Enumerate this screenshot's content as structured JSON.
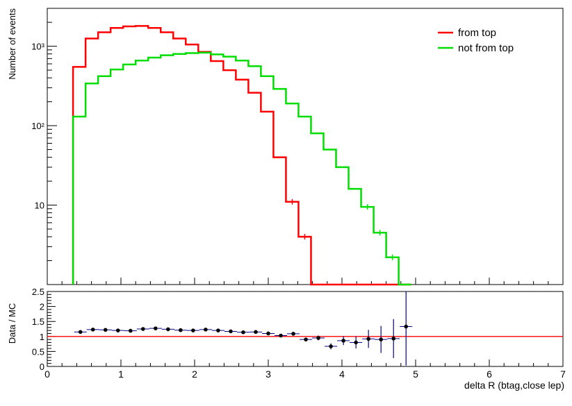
{
  "chart_data": [
    {
      "type": "line",
      "style": "step-histogram",
      "title": "",
      "xlabel": "",
      "ylabel": "Number of events",
      "yscale": "log",
      "ylim": [
        1,
        3000
      ],
      "xlim": [
        0,
        7
      ],
      "bin_edges": [
        0.35,
        0.52,
        0.69,
        0.86,
        1.03,
        1.2,
        1.37,
        1.54,
        1.71,
        1.88,
        2.05,
        2.22,
        2.39,
        2.56,
        2.73,
        2.9,
        3.07,
        3.24,
        3.41,
        3.58,
        3.75,
        3.92,
        4.09,
        4.26,
        4.43,
        4.6,
        4.77,
        4.94
      ],
      "y_tick_labels": [
        "10",
        "10²",
        "10³"
      ],
      "y_tick_values": [
        10,
        100,
        1000
      ],
      "legend_position": "top-right",
      "series": [
        {
          "name": "from top",
          "color": "#ff0000",
          "values": [
            550,
            1250,
            1500,
            1700,
            1780,
            1800,
            1700,
            1500,
            1250,
            1050,
            850,
            650,
            500,
            380,
            260,
            150,
            40,
            11,
            4,
            0,
            0,
            0,
            0,
            0,
            0,
            0,
            0
          ]
        },
        {
          "name": "not from top",
          "color": "#00dd00",
          "values": [
            130,
            340,
            420,
            510,
            590,
            660,
            720,
            770,
            800,
            820,
            830,
            790,
            740,
            660,
            560,
            420,
            290,
            190,
            130,
            80,
            50,
            30,
            16,
            9.5,
            4.5,
            2.2,
            0
          ]
        }
      ]
    },
    {
      "type": "scatter",
      "style": "error-bars",
      "xlabel": "delta R (btag,close lep)",
      "ylabel": "Data / MC",
      "xlim": [
        0,
        7
      ],
      "ylim": [
        0,
        2.5
      ],
      "x_ticks": [
        0,
        1,
        2,
        3,
        4,
        5,
        6,
        7
      ],
      "y_ticks": [
        0,
        0.5,
        1,
        1.5,
        2,
        2.5
      ],
      "reference_line": {
        "y": 1,
        "color": "#ff0000"
      },
      "point_color": "#000000",
      "error_color": "#00008b",
      "series": [
        {
          "name": "",
          "points": [
            {
              "x": 0.45,
              "y": 1.15,
              "err": 0.03
            },
            {
              "x": 0.62,
              "y": 1.23,
              "err": 0.02
            },
            {
              "x": 0.79,
              "y": 1.22,
              "err": 0.02
            },
            {
              "x": 0.96,
              "y": 1.2,
              "err": 0.02
            },
            {
              "x": 1.13,
              "y": 1.19,
              "err": 0.02
            },
            {
              "x": 1.3,
              "y": 1.25,
              "err": 0.02
            },
            {
              "x": 1.47,
              "y": 1.27,
              "err": 0.02
            },
            {
              "x": 1.64,
              "y": 1.24,
              "err": 0.02
            },
            {
              "x": 1.81,
              "y": 1.21,
              "err": 0.02
            },
            {
              "x": 1.98,
              "y": 1.2,
              "err": 0.02
            },
            {
              "x": 2.15,
              "y": 1.23,
              "err": 0.02
            },
            {
              "x": 2.32,
              "y": 1.2,
              "err": 0.02
            },
            {
              "x": 2.49,
              "y": 1.17,
              "err": 0.02
            },
            {
              "x": 2.66,
              "y": 1.14,
              "err": 0.02
            },
            {
              "x": 2.83,
              "y": 1.15,
              "err": 0.03
            },
            {
              "x": 3.0,
              "y": 1.1,
              "err": 0.03
            },
            {
              "x": 3.17,
              "y": 1.03,
              "err": 0.04
            },
            {
              "x": 3.34,
              "y": 1.09,
              "err": 0.05
            },
            {
              "x": 3.51,
              "y": 0.9,
              "err": 0.06
            },
            {
              "x": 3.68,
              "y": 0.95,
              "err": 0.08
            },
            {
              "x": 3.85,
              "y": 0.67,
              "err": 0.1
            },
            {
              "x": 4.02,
              "y": 0.86,
              "err": 0.15
            },
            {
              "x": 4.19,
              "y": 0.8,
              "err": 0.2
            },
            {
              "x": 4.36,
              "y": 0.92,
              "err": 0.3
            },
            {
              "x": 4.53,
              "y": 0.9,
              "err": 0.45
            },
            {
              "x": 4.7,
              "y": 0.93,
              "err": 0.65
            },
            {
              "x": 4.87,
              "y": 1.33,
              "err": 1.3
            }
          ]
        }
      ]
    }
  ]
}
